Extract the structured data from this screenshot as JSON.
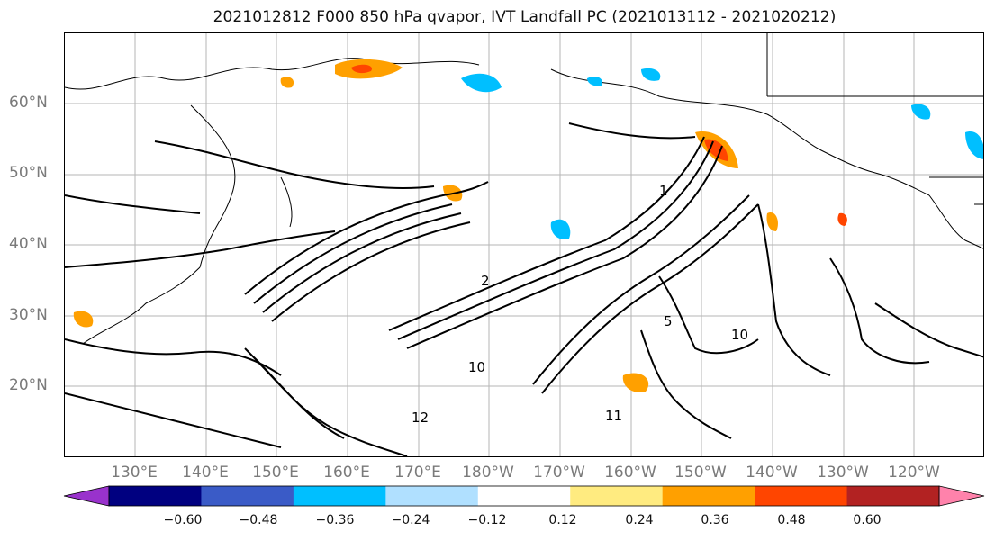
{
  "title": "2021012812 F000 850 hPa qvapor, IVT Landfall PC (2021013112 - 2021020212)",
  "map": {
    "lat_labels": [
      "60°N",
      "50°N",
      "40°N",
      "30°N",
      "20°N"
    ],
    "lon_labels": [
      "130°E",
      "140°E",
      "150°E",
      "160°E",
      "170°E",
      "180°W",
      "170°W",
      "160°W",
      "150°W",
      "140°W",
      "130°W",
      "120°W"
    ],
    "contour_labels": [
      "10",
      "12",
      "11",
      "10",
      "1",
      "2",
      "5"
    ],
    "gridlines": true,
    "projection": "PlateCarree"
  },
  "colorbar": {
    "colors": [
      "#9932cc",
      "#000080",
      "#3a5bc7",
      "#00bfff",
      "#b0e0ff",
      "#ffffff",
      "#ffeb80",
      "#ffa000",
      "#ff4500",
      "#b22222",
      "#ff82ab"
    ],
    "ticks": [
      "−0.60",
      "−0.48",
      "−0.36",
      "−0.24",
      "−0.12",
      "0.12",
      "0.24",
      "0.36",
      "0.48",
      "0.60"
    ],
    "extend": "both"
  }
}
